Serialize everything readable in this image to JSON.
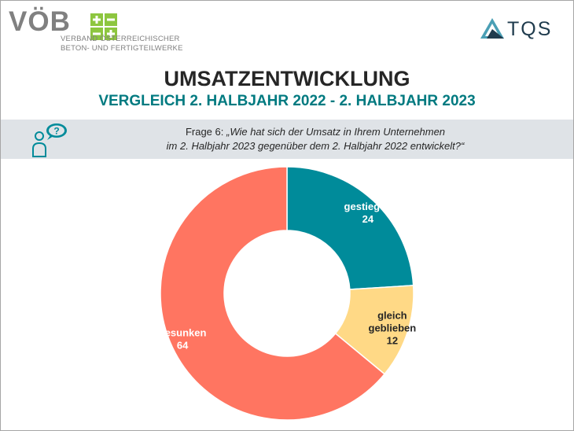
{
  "header": {
    "voeb_wordmark": "VÖB",
    "voeb_line1": "VERBAND ÖSTERREICHISCHER",
    "voeb_line2": "BETON- UND FERTIGTEILWERKE",
    "tqs_wordmark": "TQS"
  },
  "title": "UMSATZENTWICKLUNG",
  "subtitle": "VERGLEICH 2. HALBJAHR 2022 - 2. HALBJAHR 2023",
  "question": {
    "prefix": "Frage 6: ",
    "line1_italic": "„Wie hat sich der Umsatz in Ihrem Unternehmen",
    "line2_italic": "im 2. Halbjahr 2023 gegenüber dem 2. Halbjahr 2022 entwickelt?“"
  },
  "colors": {
    "gestiegen": "#008b9a",
    "gleich_geblieben": "#ffd986",
    "gesunken": "#ff7561",
    "teal_brand": "#007a80",
    "voeb_green": "#8dc63f"
  },
  "icons": [
    "person-question-icon",
    "voeb-plus-logo-icon",
    "tqs-triangle-logo-icon"
  ],
  "chart_data": {
    "type": "pie",
    "variant": "donut",
    "categories": [
      "gestiegen",
      "gleich geblieben",
      "gesunken"
    ],
    "values": [
      24,
      12,
      64
    ],
    "value_labels": [
      "24",
      "12",
      "64"
    ],
    "label_lines": [
      [
        "gestiegen",
        "24"
      ],
      [
        "gleich",
        "geblieben",
        "12"
      ],
      [
        "gesunken",
        "64"
      ]
    ],
    "label_colors": [
      "#ffffff",
      "#262626",
      "#ffffff"
    ],
    "legend": "none",
    "start_angle": "12 o'clock",
    "direction": "clockwise"
  }
}
